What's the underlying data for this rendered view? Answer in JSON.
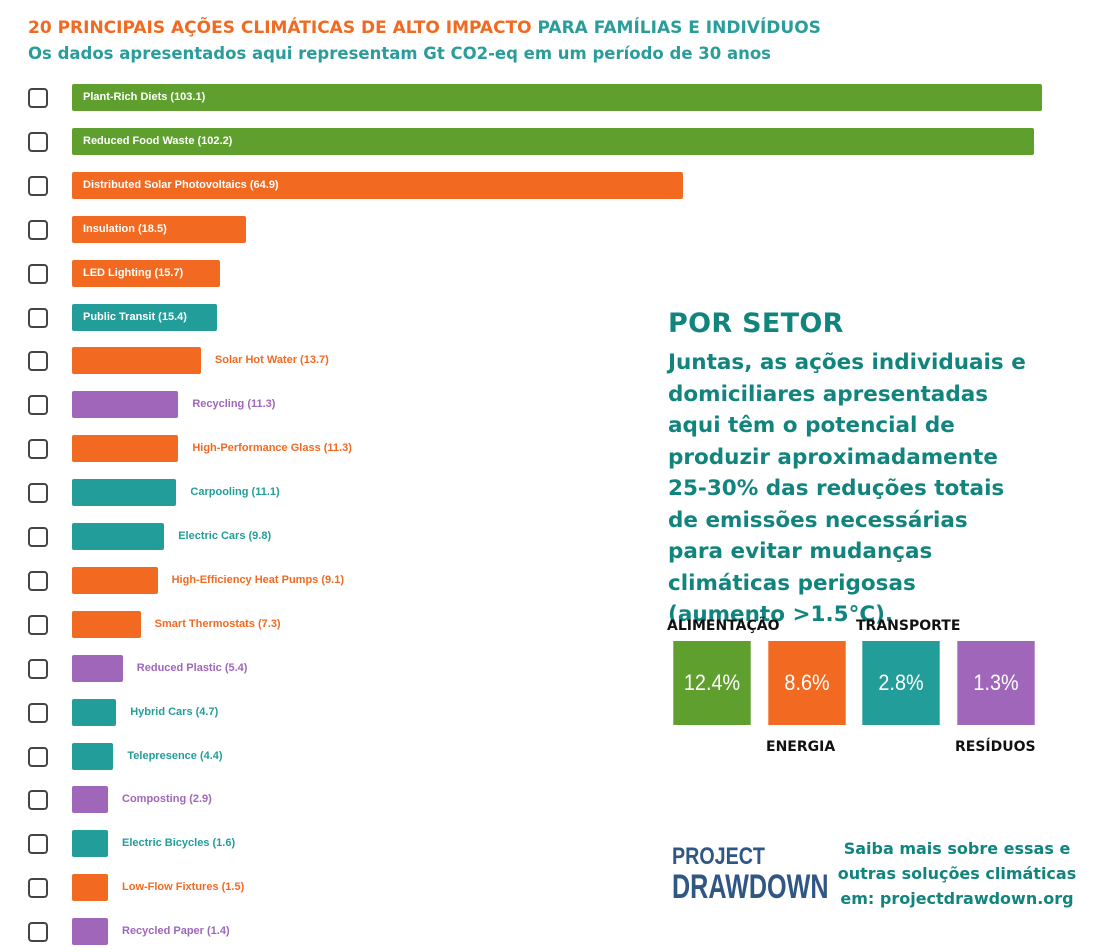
{
  "header": {
    "title_part1": "20 PRINCIPAIS AÇÕES CLIMÁTICAS DE ALTO IMPACTO",
    "title_part2": "PARA FAMÍLIAS E INDIVÍDUOS",
    "subtitle": "Os dados apresentados aqui representam Gt CO2-eq em um período de 30 anos"
  },
  "colors": {
    "food": "#5e9f2e",
    "energy": "#f26a21",
    "transport": "#239d9a",
    "waste": "#a066b9",
    "teal_text": "#12847e"
  },
  "chart_data": {
    "type": "bar",
    "orientation": "horizontal",
    "title": "20 PRINCIPAIS AÇÕES CLIMÁTICAS DE ALTO IMPACTO PARA FAMÍLIAS E INDIVÍDUOS",
    "subtitle": "Os dados apresentados aqui representam Gt CO2-eq em um período de 30 anos",
    "xlim": [
      0,
      103.1
    ],
    "grid": false,
    "items": [
      {
        "label": "Plant-Rich Diets (103.1)",
        "value": 103.1,
        "sector": "food"
      },
      {
        "label": "Reduced Food Waste (102.2)",
        "value": 102.2,
        "sector": "food"
      },
      {
        "label": "Distributed Solar Photovoltaics (64.9)",
        "value": 64.9,
        "sector": "energy"
      },
      {
        "label": "Insulation (18.5)",
        "value": 18.5,
        "sector": "energy"
      },
      {
        "label": "LED Lighting (15.7)",
        "value": 15.7,
        "sector": "energy"
      },
      {
        "label": "Public Transit (15.4)",
        "value": 15.4,
        "sector": "transport"
      },
      {
        "label": "Solar Hot Water (13.7)",
        "value": 13.7,
        "sector": "energy"
      },
      {
        "label": "Recycling (11.3)",
        "value": 11.3,
        "sector": "waste"
      },
      {
        "label": "High-Performance Glass (11.3)",
        "value": 11.3,
        "sector": "energy"
      },
      {
        "label": "Carpooling (11.1)",
        "value": 11.1,
        "sector": "transport"
      },
      {
        "label": "Electric Cars (9.8)",
        "value": 9.8,
        "sector": "transport"
      },
      {
        "label": "High-Efficiency Heat Pumps (9.1)",
        "value": 9.1,
        "sector": "energy"
      },
      {
        "label": "Smart Thermostats (7.3)",
        "value": 7.3,
        "sector": "energy"
      },
      {
        "label": "Reduced Plastic (5.4)",
        "value": 5.4,
        "sector": "waste"
      },
      {
        "label": "Hybrid Cars (4.7)",
        "value": 4.7,
        "sector": "transport"
      },
      {
        "label": "Telepresence (4.4)",
        "value": 4.4,
        "sector": "transport"
      },
      {
        "label": "Composting (2.9)",
        "value": 2.9,
        "sector": "waste"
      },
      {
        "label": "Electric Bicycles (1.6)",
        "value": 1.6,
        "sector": "transport"
      },
      {
        "label": "Low-Flow Fixtures (1.5)",
        "value": 1.5,
        "sector": "energy"
      },
      {
        "label": "Recycled Paper (1.4)",
        "value": 1.4,
        "sector": "waste"
      }
    ]
  },
  "sector_panel": {
    "heading": "POR SETOR",
    "description": "Juntas, as ações individuais e domiciliares apresentadas aqui têm o potencial de produzir aproximadamente 25-30% das reduções totais de emissões necessárias para evitar mudanças climáticas perigosas (aumento >1.5°C).",
    "sectors": [
      {
        "name": "ALIMENTAÇÃO",
        "share": "12.4%",
        "color": "#5e9f2e",
        "label_position": "top"
      },
      {
        "name": "ENERGIA",
        "share": "8.6%",
        "color": "#f26a21",
        "label_position": "bottom"
      },
      {
        "name": "TRANSPORTE",
        "share": "2.8%",
        "color": "#239d9a",
        "label_position": "top"
      },
      {
        "name": "RESÍDUOS",
        "share": "1.3%",
        "color": "#a066b9",
        "label_position": "bottom"
      }
    ]
  },
  "footer": {
    "logo_line1": "PROJECT",
    "logo_line2": "DRAWDOWN",
    "cta_line1": "Saiba mais sobre essas e",
    "cta_line2": "outras soluções climáticas",
    "cta_line3": "em: projectdrawdown.org"
  }
}
